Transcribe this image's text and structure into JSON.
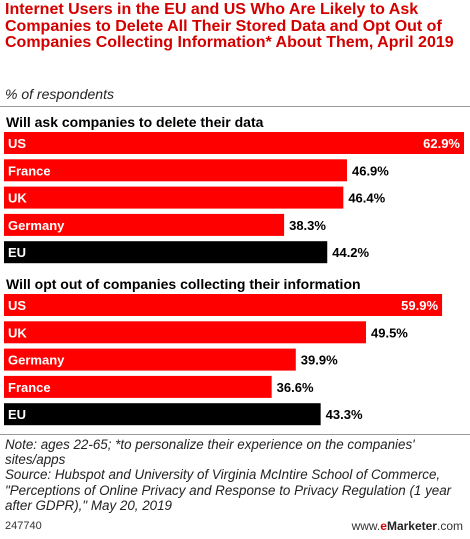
{
  "title": "Internet Users in the EU and US Who Are Likely to Ask Companies to Delete All Their Stored Data and Opt Out of Companies Collecting Information* About Them, April 2019",
  "subtitle": "% of respondents",
  "colors": {
    "accent": "#ff0000",
    "eu": "#000000",
    "title": "#d40000"
  },
  "chart_data": [
    {
      "type": "bar",
      "title": "Will ask companies to delete their data",
      "categories": [
        "US",
        "France",
        "UK",
        "Germany",
        "EU"
      ],
      "values": [
        62.9,
        46.9,
        46.4,
        38.3,
        44.2
      ],
      "labels": [
        "62.9%",
        "46.9%",
        "46.4%",
        "38.3%",
        "44.2%"
      ],
      "xlim": [
        0,
        62.9
      ],
      "orientation": "horizontal"
    },
    {
      "type": "bar",
      "title": "Will opt out of companies collecting their information",
      "categories": [
        "US",
        "UK",
        "Germany",
        "France",
        "EU"
      ],
      "values": [
        59.9,
        49.5,
        39.9,
        36.6,
        43.3
      ],
      "labels": [
        "59.9%",
        "49.5%",
        "39.9%",
        "36.6%",
        "43.3%"
      ],
      "xlim": [
        0,
        62.9
      ],
      "orientation": "horizontal"
    }
  ],
  "note": "Note: ages 22-65; *to personalize their experience on the companies' sites/apps",
  "source": "Source: Hubspot and University of Virginia McIntire School of Commerce, \"Perceptions of Online Privacy and Response to Privacy Regulation (1 year after GDPR),\" May 20, 2019",
  "footer": {
    "chart_id": "247740",
    "brand_prefix": "www.",
    "brand_e": "e",
    "brand_name": "Marketer",
    "brand_suffix": ".com"
  }
}
